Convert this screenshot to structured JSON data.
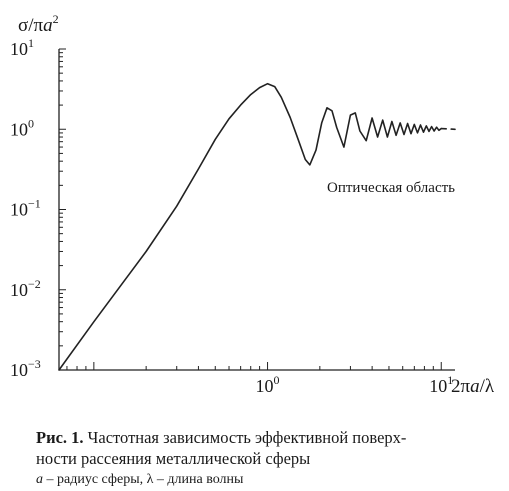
{
  "chart_data": {
    "type": "line",
    "title": "",
    "ylabel": "σ/πa²",
    "xlabel": "2πa/λ",
    "y_axis_label": {
      "base": "σ/π",
      "var": "a",
      "sup": "2"
    },
    "x_axis_label": {
      "prefix": "2π",
      "var": "a",
      "suffix": "/λ"
    },
    "x_scale": "log",
    "y_scale": "log",
    "xlim": [
      0.063,
      12
    ],
    "ylim": [
      0.001,
      10
    ],
    "x_ticks": [
      {
        "value": 1,
        "base": "10",
        "exp": "0"
      },
      {
        "value": 10,
        "base": "10",
        "exp": "1"
      }
    ],
    "y_ticks": [
      {
        "value": 0.001,
        "base": "10",
        "exp": "−3"
      },
      {
        "value": 0.01,
        "base": "10",
        "exp": "−2"
      },
      {
        "value": 0.1,
        "base": "10",
        "exp": "−1"
      },
      {
        "value": 1,
        "base": "10",
        "exp": "0"
      },
      {
        "value": 10,
        "base": "10",
        "exp": "1"
      }
    ],
    "series": [
      {
        "style": "solid",
        "x": [
          0.063,
          0.1,
          0.2,
          0.3,
          0.4,
          0.5,
          0.6,
          0.7,
          0.8,
          0.9,
          1.0,
          1.1,
          1.2,
          1.35,
          1.5,
          1.65,
          1.75,
          1.9,
          2.05,
          2.2,
          2.35,
          2.5,
          2.75,
          3.0,
          3.2,
          3.4,
          3.7,
          4.0,
          4.3,
          4.6,
          4.9,
          5.2,
          5.5,
          5.8,
          6.1,
          6.4,
          6.7,
          7.0,
          7.3,
          7.6,
          7.9,
          8.2,
          8.5,
          8.8,
          9.1,
          9.4,
          9.7,
          10.0
        ],
        "y": [
          0.001,
          0.004,
          0.03,
          0.11,
          0.32,
          0.75,
          1.35,
          2.0,
          2.7,
          3.3,
          3.7,
          3.4,
          2.5,
          1.4,
          0.75,
          0.42,
          0.36,
          0.55,
          1.2,
          1.85,
          1.7,
          1.05,
          0.6,
          1.5,
          1.6,
          0.95,
          0.72,
          1.38,
          0.8,
          1.3,
          0.8,
          1.25,
          0.84,
          1.2,
          0.86,
          1.18,
          0.88,
          1.15,
          0.9,
          1.13,
          0.92,
          1.1,
          0.94,
          1.08,
          0.95,
          1.06,
          0.97,
          1.02
        ]
      },
      {
        "style": "dashed",
        "x": [
          10.0,
          12
        ],
        "y": [
          1.02,
          1.0
        ]
      }
    ],
    "annotations": [
      {
        "text": "Оптическая область",
        "x": 1.5,
        "y": 0.25
      }
    ],
    "grid": false,
    "legend": "none"
  },
  "caption": {
    "label": "Рис. 1.",
    "text": " Частотная зависимость эффективной поверх-",
    "line2": "ности рассеяния металлической сферы",
    "legend_a": "a",
    "legend_a_text": " – радиус сферы, ",
    "legend_l": "λ",
    "legend_l_text": " – длина волны"
  }
}
